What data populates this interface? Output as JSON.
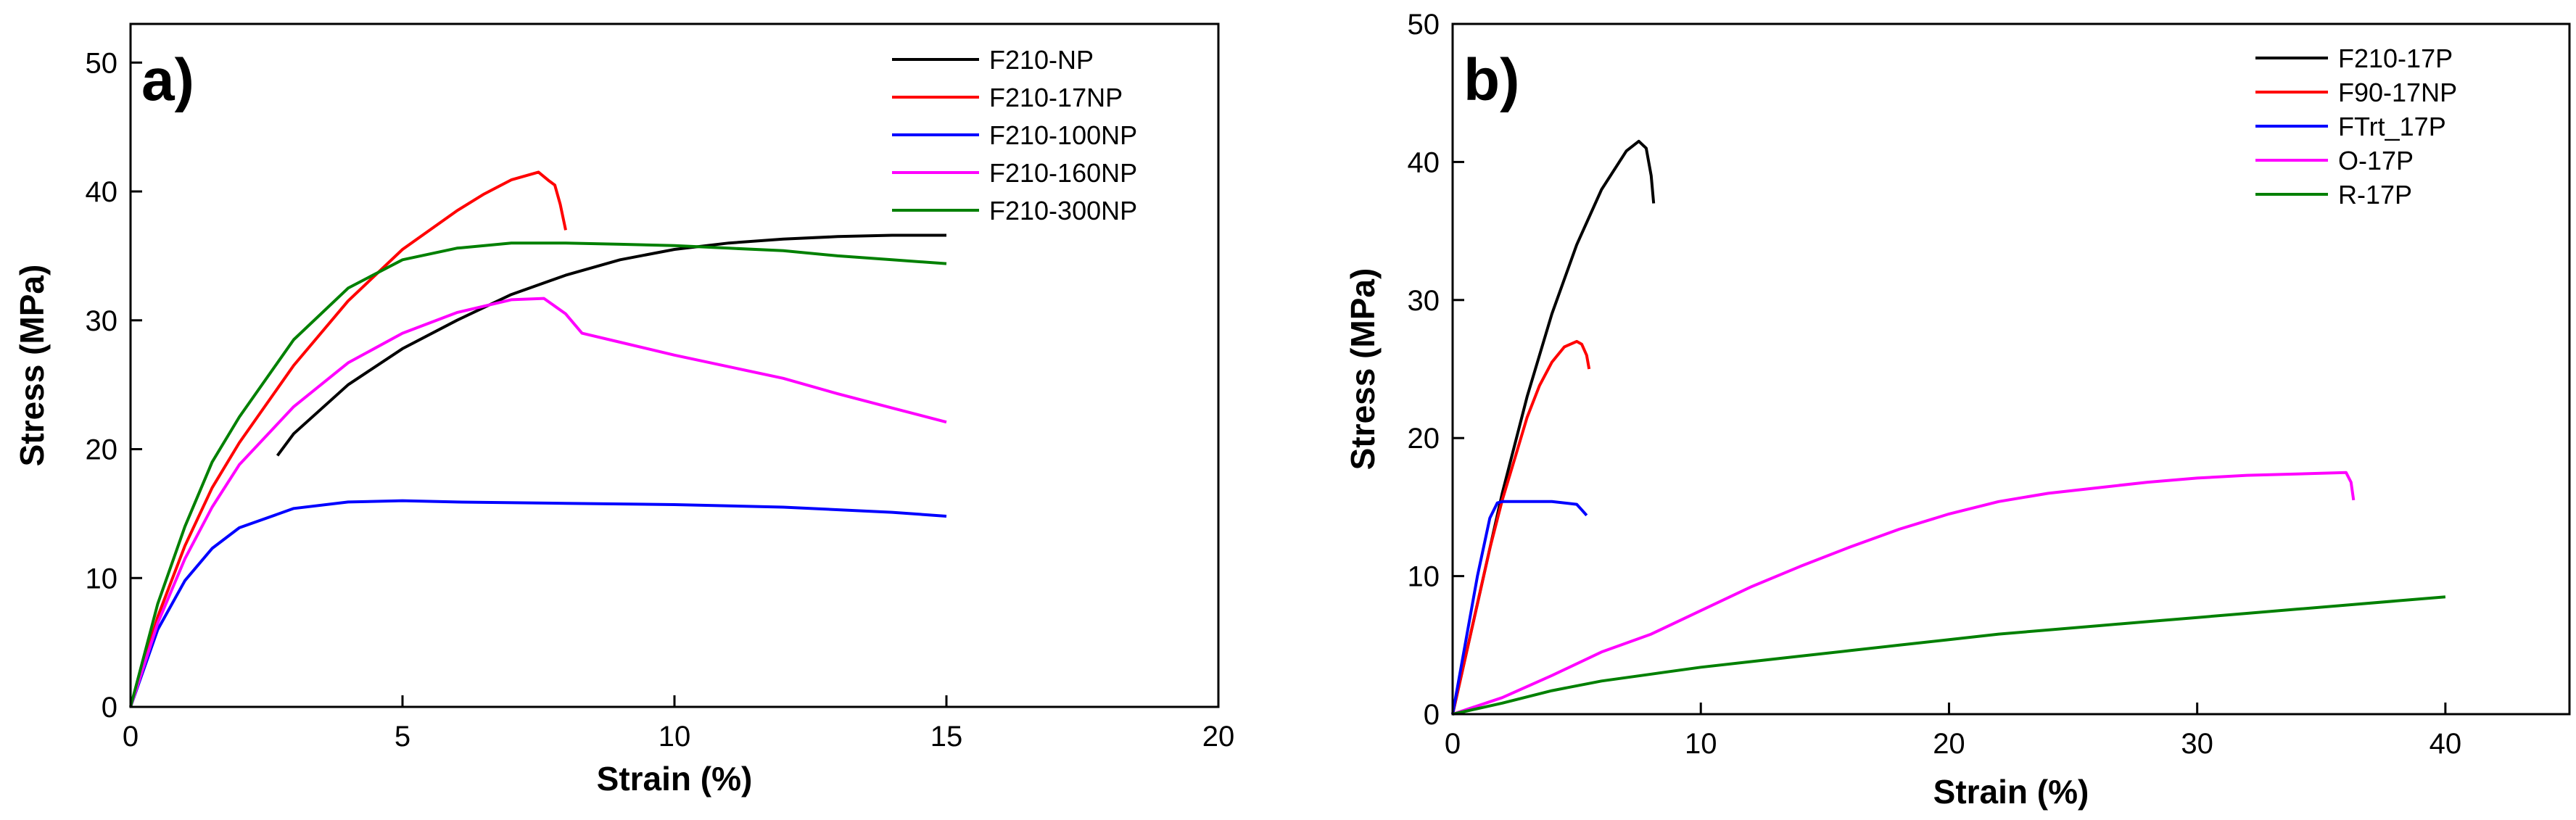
{
  "chart_data": [
    {
      "type": "line",
      "panel_label": "a)",
      "xlabel": "Strain (%)",
      "ylabel": "Stress (MPa)",
      "xlim": [
        0,
        20
      ],
      "ylim": [
        0,
        53
      ],
      "xticks": [
        0,
        5,
        10,
        15,
        20
      ],
      "yticks": [
        0,
        10,
        20,
        30,
        40,
        50
      ],
      "legend_position": "top-right",
      "series": [
        {
          "name": "F210-NP",
          "color": "#000000",
          "x": [
            2.7,
            3,
            4,
            5,
            6,
            7,
            8,
            9,
            10,
            11,
            12,
            13,
            14,
            15
          ],
          "y": [
            19.5,
            21.2,
            25.0,
            27.8,
            30.0,
            32.0,
            33.5,
            34.7,
            35.5,
            36.0,
            36.3,
            36.5,
            36.6,
            36.6
          ]
        },
        {
          "name": "F210-17NP",
          "color": "#ff0000",
          "x": [
            0,
            0.5,
            1,
            1.5,
            2,
            3,
            4,
            5,
            6,
            6.5,
            7,
            7.5,
            7.7,
            7.8,
            7.9,
            8.0
          ],
          "y": [
            0,
            7,
            12.5,
            17,
            20.5,
            26.5,
            31.5,
            35.5,
            38.5,
            39.8,
            40.9,
            41.5,
            40.8,
            40.5,
            39.0,
            37.0
          ]
        },
        {
          "name": "F210-100NP",
          "color": "#0000ff",
          "x": [
            0,
            0.5,
            1,
            1.5,
            2,
            3,
            4,
            5,
            6,
            8,
            10,
            12,
            14,
            15
          ],
          "y": [
            0,
            6,
            9.8,
            12.3,
            13.9,
            15.4,
            15.9,
            16.0,
            15.9,
            15.8,
            15.7,
            15.5,
            15.1,
            14.8
          ]
        },
        {
          "name": "F210-160NP",
          "color": "#ff00ff",
          "x": [
            0,
            0.5,
            1,
            1.5,
            2,
            3,
            4,
            5,
            6,
            7,
            7.6,
            8.0,
            8.3,
            9,
            10,
            11,
            12,
            13,
            14,
            15
          ],
          "y": [
            0,
            6.5,
            11.5,
            15.5,
            18.8,
            23.3,
            26.7,
            29.0,
            30.6,
            31.6,
            31.7,
            30.5,
            29.0,
            28.3,
            27.3,
            26.4,
            25.5,
            24.3,
            23.2,
            22.1
          ]
        },
        {
          "name": "F210-300NP",
          "color": "#008000",
          "x": [
            0,
            0.5,
            1,
            1.5,
            2,
            3,
            4,
            5,
            6,
            7,
            8,
            9,
            10,
            11,
            12,
            13,
            14,
            15
          ],
          "y": [
            0,
            8,
            14,
            19,
            22.5,
            28.5,
            32.5,
            34.7,
            35.6,
            36.0,
            36.0,
            35.9,
            35.8,
            35.6,
            35.4,
            35.0,
            34.7,
            34.4
          ]
        }
      ]
    },
    {
      "type": "line",
      "panel_label": "b)",
      "xlabel": "Strain (%)",
      "ylabel": "Stress (MPa)",
      "xlim": [
        0,
        45
      ],
      "ylim": [
        0,
        50
      ],
      "xticks": [
        0,
        10,
        20,
        30,
        40
      ],
      "yticks": [
        0,
        10,
        20,
        30,
        40,
        50
      ],
      "legend_position": "top-right",
      "series": [
        {
          "name": "F210-17P",
          "color": "#000000",
          "x": [
            0,
            0.5,
            1,
            1.5,
            2,
            3,
            4,
            5,
            6,
            7,
            7.5,
            7.8,
            8.0,
            8.1
          ],
          "y": [
            0,
            4,
            8,
            12,
            16,
            23,
            29,
            34,
            38,
            40.8,
            41.5,
            41.0,
            39.0,
            37.0
          ]
        },
        {
          "name": "F90-17NP",
          "color": "#ff0000",
          "x": [
            0,
            0.5,
            1,
            1.5,
            2,
            2.5,
            3,
            3.5,
            4,
            4.5,
            5,
            5.2,
            5.4,
            5.5
          ],
          "y": [
            0,
            4,
            8,
            12,
            15.5,
            18.5,
            21.5,
            23.8,
            25.5,
            26.6,
            27.0,
            26.8,
            26.0,
            25.0
          ]
        },
        {
          "name": "FTrt_17P",
          "color": "#0000ff",
          "x": [
            0,
            0.5,
            1,
            1.5,
            1.8,
            2,
            3,
            4,
            5,
            5.2,
            5.4
          ],
          "y": [
            0,
            5,
            10,
            14.2,
            15.3,
            15.4,
            15.4,
            15.4,
            15.2,
            14.8,
            14.4
          ]
        },
        {
          "name": "O-17P",
          "color": "#ff00ff",
          "x": [
            0,
            2,
            4,
            6,
            8,
            10,
            12,
            14,
            16,
            18,
            20,
            22,
            24,
            26,
            28,
            30,
            32,
            34,
            36,
            36.2,
            36.3
          ],
          "y": [
            0,
            1.2,
            2.8,
            4.5,
            5.8,
            7.5,
            9.2,
            10.7,
            12.1,
            13.4,
            14.5,
            15.4,
            16.0,
            16.4,
            16.8,
            17.1,
            17.3,
            17.4,
            17.5,
            16.8,
            15.5
          ]
        },
        {
          "name": "R-17P",
          "color": "#008000",
          "x": [
            0,
            2,
            4,
            6,
            8,
            10,
            12,
            14,
            16,
            18,
            20,
            22,
            24,
            26,
            28,
            30,
            32,
            34,
            36,
            38,
            40
          ],
          "y": [
            0,
            0.8,
            1.7,
            2.4,
            2.9,
            3.4,
            3.8,
            4.2,
            4.6,
            5.0,
            5.4,
            5.8,
            6.1,
            6.4,
            6.7,
            7.0,
            7.3,
            7.6,
            7.9,
            8.2,
            8.5
          ]
        }
      ]
    }
  ]
}
